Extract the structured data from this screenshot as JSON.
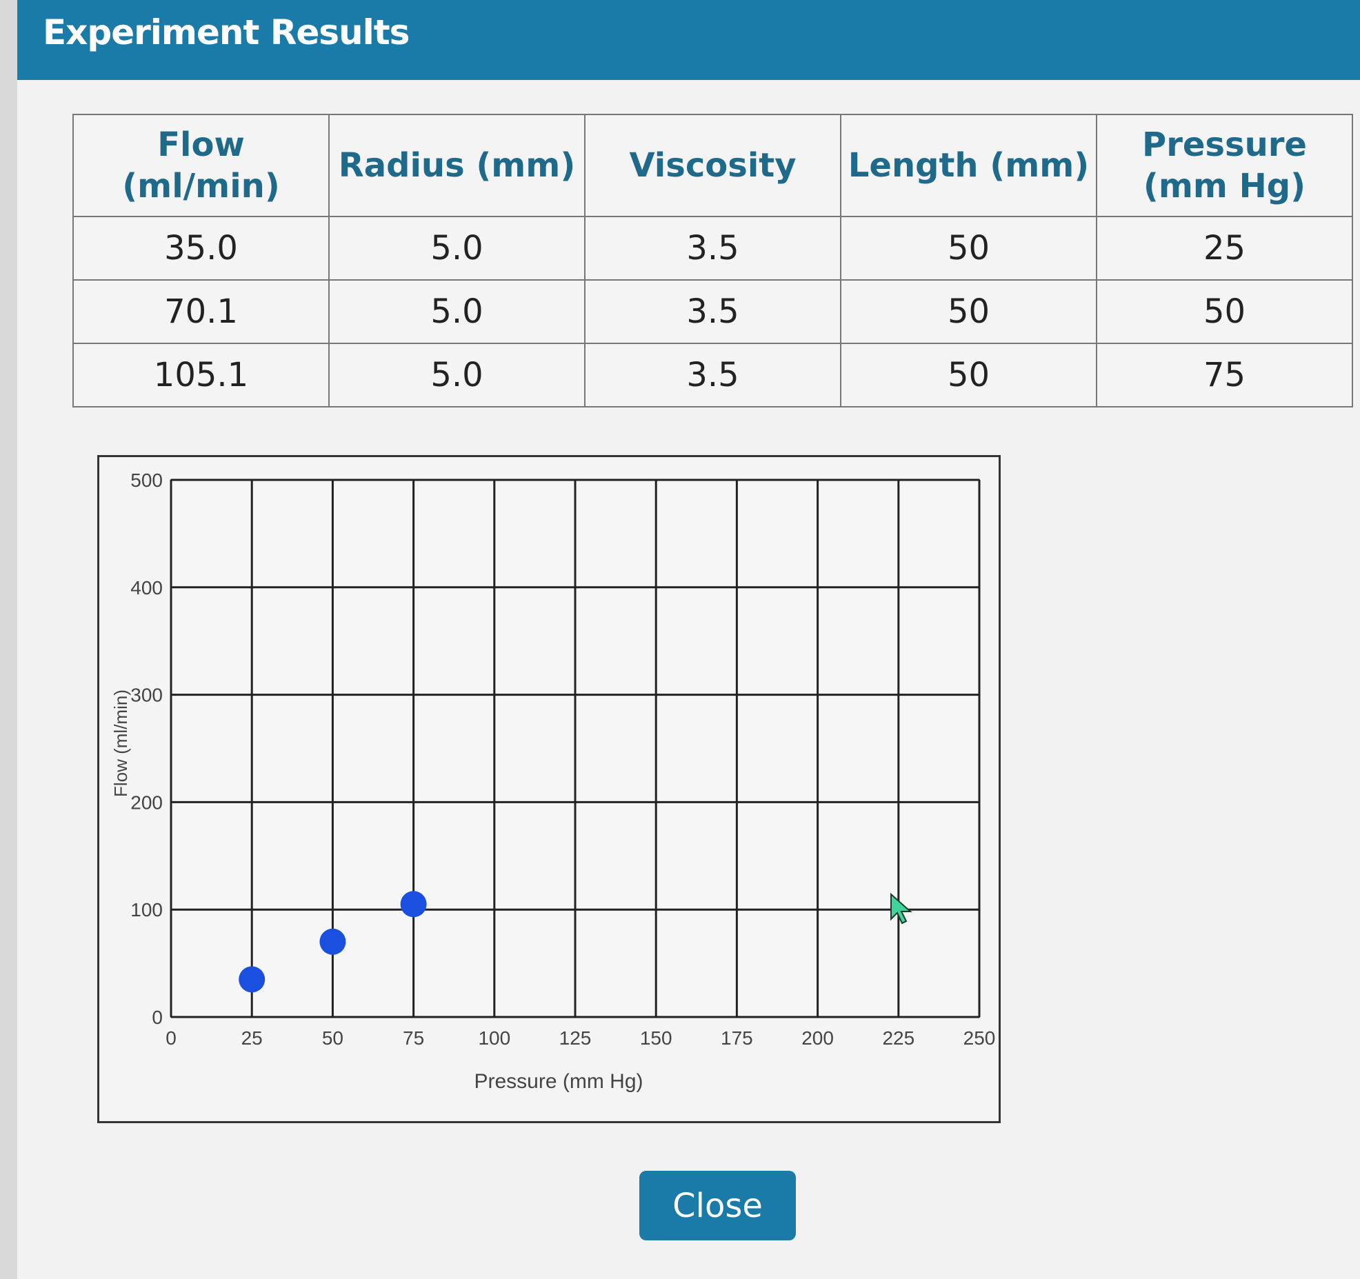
{
  "dialog": {
    "title": "Experiment Results",
    "close_label": "Close"
  },
  "table": {
    "headers": [
      "Flow (ml/min)",
      "Radius (mm)",
      "Viscosity",
      "Length (mm)",
      "Pressure (mm Hg)"
    ],
    "rows": [
      [
        "35.0",
        "5.0",
        "3.5",
        "50",
        "25"
      ],
      [
        "70.1",
        "5.0",
        "3.5",
        "50",
        "50"
      ],
      [
        "105.1",
        "5.0",
        "3.5",
        "50",
        "75"
      ]
    ]
  },
  "chart_data": {
    "type": "scatter",
    "xlabel": "Pressure (mm Hg)",
    "ylabel": "Flow (ml/min)",
    "xlim": [
      0,
      250
    ],
    "ylim": [
      0,
      500
    ],
    "xticks": [
      "0",
      "25",
      "50",
      "75",
      "100",
      "125",
      "150",
      "175",
      "200",
      "225",
      "250"
    ],
    "yticks": [
      "0",
      "100",
      "200",
      "300",
      "400",
      "500"
    ],
    "grid": true,
    "x": [
      25,
      50,
      75
    ],
    "y": [
      35.0,
      70.1,
      105.1
    ],
    "point_color": "#1a4fe0"
  },
  "colors": {
    "header": "#1a7aa8",
    "accent_text": "#1f6a8a"
  }
}
